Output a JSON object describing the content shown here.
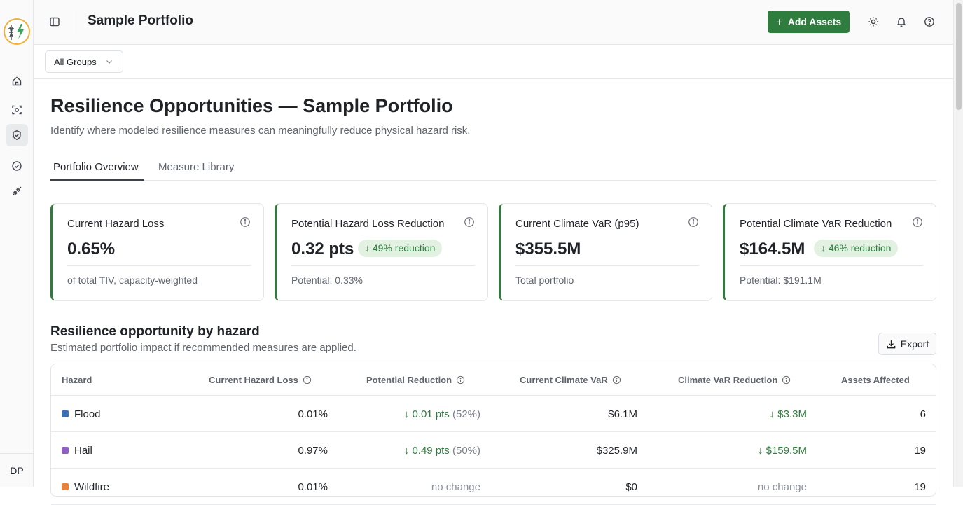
{
  "app": {
    "title": "Sample Portfolio",
    "user_initials": "DP"
  },
  "toolbar": {
    "add_assets_label": "Add Assets"
  },
  "filters": {
    "group_select_value": "All Groups"
  },
  "page": {
    "title": "Resilience Opportunities — Sample Portfolio",
    "subtitle": "Identify where modeled resilience measures can meaningfully reduce physical hazard risk."
  },
  "tabs": [
    {
      "label": "Portfolio Overview",
      "active": true
    },
    {
      "label": "Measure Library",
      "active": false
    }
  ],
  "cards": [
    {
      "label": "Current Hazard Loss",
      "value": "0.65%",
      "badge": "",
      "footer": "of total TIV, capacity-weighted"
    },
    {
      "label": "Potential Hazard Loss Reduction",
      "value": "0.32 pts",
      "badge": "49% reduction",
      "footer": "Potential: 0.33%"
    },
    {
      "label": "Current Climate VaR (p95)",
      "value": "$355.5M",
      "badge": "",
      "footer": "Total portfolio"
    },
    {
      "label": "Potential Climate VaR Reduction",
      "value": "$164.5M",
      "badge": "46% reduction",
      "footer": "Potential: $191.1M"
    }
  ],
  "section": {
    "title": "Resilience opportunity by hazard",
    "subtitle": "Estimated portfolio impact if recommended measures are applied.",
    "export_label": "Export"
  },
  "table": {
    "columns": [
      "Hazard",
      "Current Hazard Loss",
      "Potential Reduction",
      "Current Climate VaR",
      "Climate VaR Reduction",
      "Assets Affected"
    ],
    "rows": [
      {
        "hazard": "Flood",
        "color": "#3b6fb6",
        "loss": "0.01%",
        "reduction": "0.01 pts",
        "reduction_pct": "(52%)",
        "var": "$6.1M",
        "var_reduction": "$3.3M",
        "assets": "6"
      },
      {
        "hazard": "Hail",
        "color": "#8e5fc0",
        "loss": "0.97%",
        "reduction": "0.49 pts",
        "reduction_pct": "(50%)",
        "var": "$325.9M",
        "var_reduction": "$159.5M",
        "assets": "19"
      },
      {
        "hazard": "Wildfire",
        "color": "#e8823a",
        "loss": "0.01%",
        "reduction": "no change",
        "reduction_pct": "",
        "var": "$0",
        "var_reduction": "no change",
        "assets": "19"
      }
    ]
  },
  "colors": {
    "accent": "#2f7d3e",
    "badge_bg": "#e3f1e3"
  },
  "icons": [
    "logo-icon",
    "home-icon",
    "scan-icon",
    "shield-check-icon",
    "gauge-icon",
    "plug-icon",
    "sidebar-toggle-icon",
    "sun-icon",
    "bell-icon",
    "help-icon",
    "info-icon",
    "arrow-down-icon",
    "download-icon",
    "chevron-down-icon"
  ]
}
